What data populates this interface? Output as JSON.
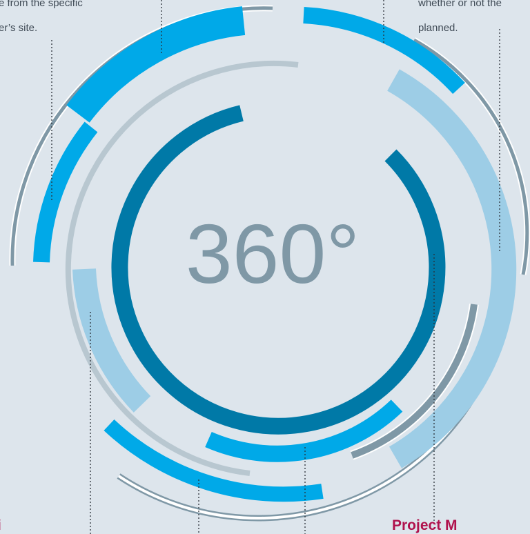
{
  "center_label": "360°",
  "colors": {
    "background": "#dde5ec",
    "dark_blue": "#0079a7",
    "bright_blue": "#00a9e8",
    "light_blue": "#9dcde6",
    "slate": "#7f98a6",
    "light_gray": "#b8c7d0",
    "white": "#ffffff",
    "label_red": "#b0124d"
  },
  "text": {
    "top_left_line1": "e from the specific",
    "top_left_line2": "er’s site.",
    "top_right_line1": "whether or not the",
    "top_right_line2": "planned."
  },
  "bottom_labels": {
    "project": "Project M",
    "left": "i"
  }
}
